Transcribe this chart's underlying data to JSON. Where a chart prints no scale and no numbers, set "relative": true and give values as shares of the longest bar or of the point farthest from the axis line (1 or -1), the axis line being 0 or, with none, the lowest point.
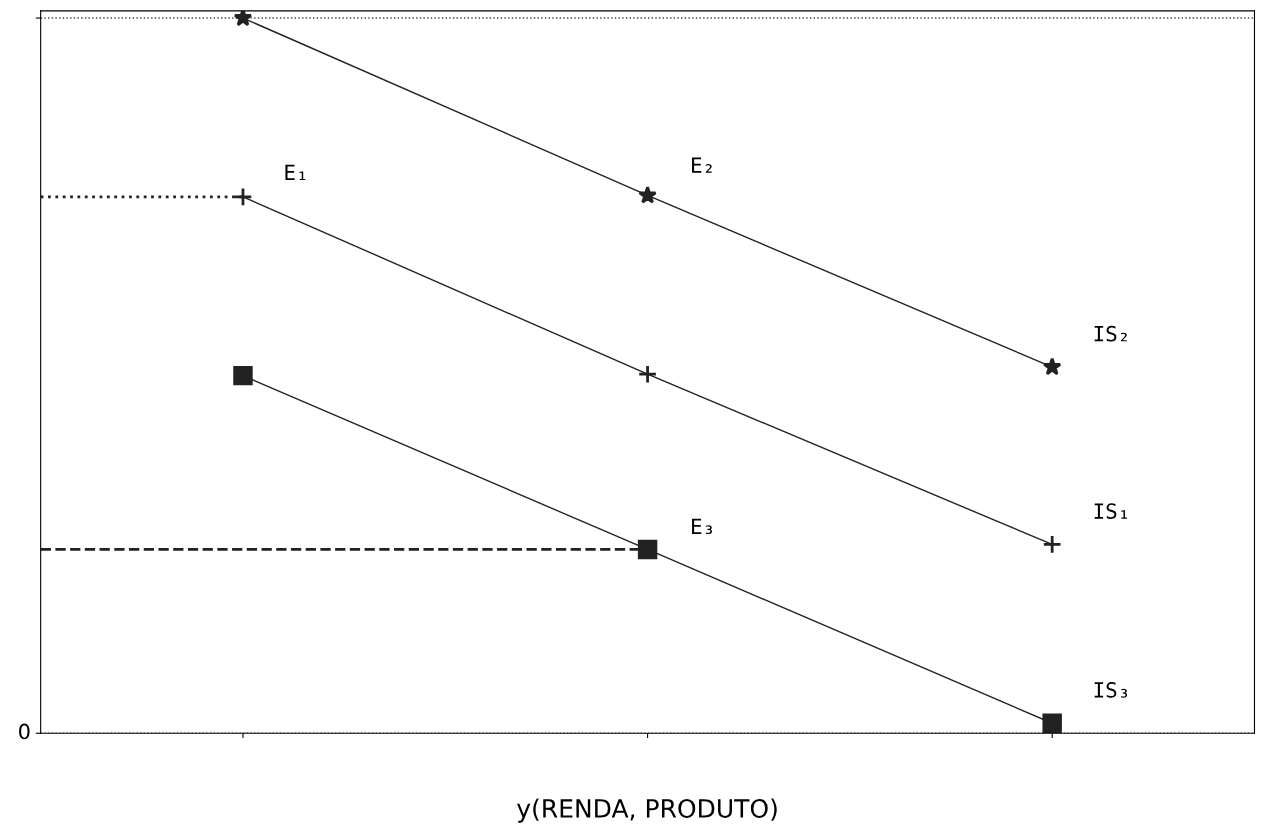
{
  "chart_data": {
    "type": "line",
    "relative": true,
    "xlabel": "y(RENDA, PRODUTO)",
    "categories": [
      null,
      null,
      null
    ],
    "series": [
      {
        "name": "IS₂",
        "color": "#222222",
        "marker": "star",
        "values": [
          1.0,
          0.752,
          0.512
        ]
      },
      {
        "name": "IS₁",
        "color": "#222222",
        "marker": "cross",
        "values": [
          0.75,
          0.502,
          0.264
        ]
      },
      {
        "name": "IS₃",
        "color": "#222222",
        "marker": "square",
        "values": [
          0.5,
          0.257,
          0.014
        ]
      }
    ],
    "grid": "y",
    "line_style": "solid",
    "annotations": [
      "E₁",
      "E₂",
      "E₃",
      "0"
    ],
    "ref_lines": [
      {
        "axis": "y",
        "value": 0.75,
        "line_style": "dotted",
        "color": "#222222"
      },
      {
        "axis": "y",
        "value": 0.257,
        "line_style": "dashed",
        "color": "#222222"
      }
    ]
  }
}
